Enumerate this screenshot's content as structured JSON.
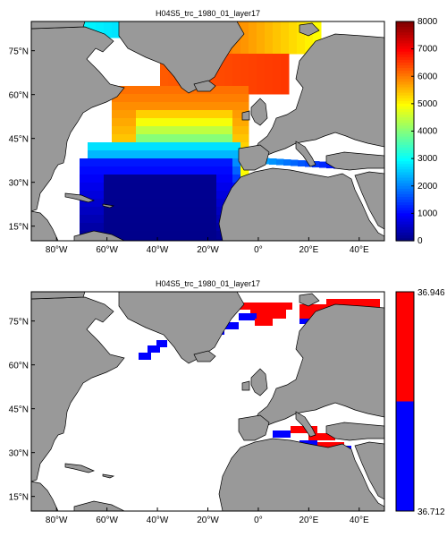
{
  "chart_data": [
    {
      "type": "heatmap",
      "title": "H04S5_trc_1980_01_layer17",
      "x_ticks": [
        "80°W",
        "60°W",
        "40°W",
        "20°W",
        "0°",
        "20°E",
        "40°E"
      ],
      "y_ticks": [
        "75°N",
        "60°N",
        "45°N",
        "30°N",
        "15°N"
      ],
      "x_ticks_deg": [
        -80,
        -60,
        -40,
        -20,
        0,
        20,
        40
      ],
      "y_ticks_deg": [
        75,
        60,
        45,
        30,
        15
      ],
      "xlim": [
        -90,
        50
      ],
      "ylim": [
        10,
        85
      ],
      "colorbar": {
        "colormap": "jet",
        "range": [
          0,
          8000
        ],
        "ticks": [
          "8000",
          "7000",
          "6000",
          "5000",
          "4000",
          "3000",
          "2000",
          "1000",
          "0"
        ]
      }
    },
    {
      "type": "heatmap",
      "title": "H04S5_trc_1980_01_layer17",
      "x_ticks": [
        "80°W",
        "60°W",
        "40°W",
        "20°W",
        "0°",
        "20°E",
        "40°E"
      ],
      "y_ticks": [
        "75°N",
        "60°N",
        "45°N",
        "30°N",
        "15°N"
      ],
      "x_ticks_deg": [
        -80,
        -60,
        -40,
        -20,
        0,
        20,
        40
      ],
      "y_ticks_deg": [
        75,
        60,
        45,
        30,
        15
      ],
      "xlim": [
        -90,
        50
      ],
      "ylim": [
        10,
        85
      ],
      "colorbar": {
        "colormap": "two-color",
        "colors": [
          "#0000ff",
          "#ff0000"
        ],
        "range": [
          36.712,
          36.946
        ],
        "max_label": "36.946",
        "min_label": "36.712"
      }
    }
  ]
}
